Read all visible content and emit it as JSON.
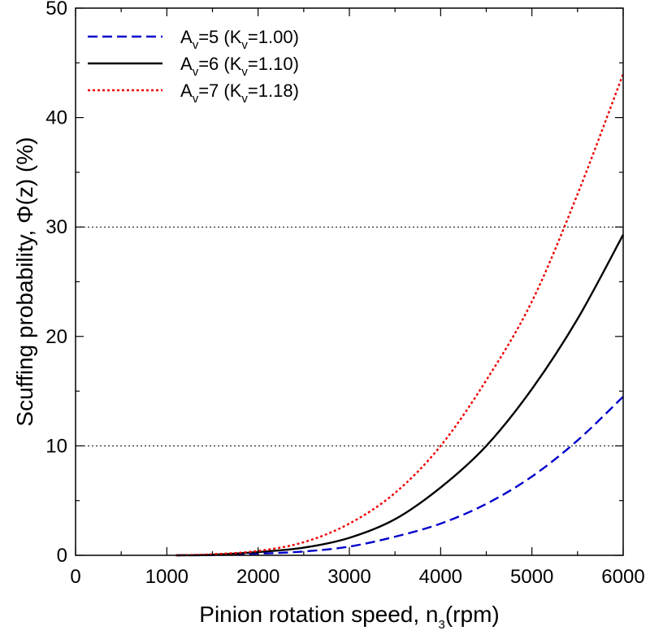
{
  "chart_data": {
    "type": "line",
    "xlabel": "Pinion rotation speed, n",
    "xlabel_sub": "3",
    "xlabel_unit": "(rpm)",
    "ylabel": "Scuffing probability, Φ(z) (%)",
    "xlim": [
      0,
      6000
    ],
    "ylim": [
      0,
      50
    ],
    "x_ticks": [
      0,
      1000,
      2000,
      3000,
      4000,
      5000,
      6000
    ],
    "y_ticks": [
      0,
      10,
      20,
      30,
      40,
      50
    ],
    "reference_lines": [
      10,
      30
    ],
    "legend_position": "top-left",
    "grid": false,
    "series": [
      {
        "name": "Av=5 (Kv=1.00)",
        "A_value": "5",
        "K_value": "1.00",
        "color": "#0000cc",
        "dash": "dashed",
        "x": [
          1100,
          1500,
          2000,
          2500,
          3000,
          3500,
          4000,
          4500,
          5000,
          5500,
          6000
        ],
        "y": [
          0.0,
          0.02,
          0.15,
          0.35,
          0.8,
          1.7,
          2.9,
          4.7,
          7.2,
          10.5,
          14.5
        ]
      },
      {
        "name": "Av=6 (Kv=1.10)",
        "A_value": "6",
        "K_value": "1.10",
        "color": "#000000",
        "dash": "solid",
        "x": [
          1100,
          1500,
          2000,
          2500,
          3000,
          3500,
          4000,
          4500,
          5000,
          5500,
          6000
        ],
        "y": [
          0.0,
          0.05,
          0.3,
          0.7,
          1.6,
          3.3,
          6.2,
          10.0,
          15.2,
          21.6,
          29.3
        ]
      },
      {
        "name": "Av=7 (Kv=1.18)",
        "A_value": "7",
        "K_value": "1.18",
        "color": "#ee0000",
        "dash": "dotted",
        "x": [
          1100,
          1500,
          2000,
          2500,
          3000,
          3500,
          4000,
          4500,
          5000,
          5500,
          6000
        ],
        "y": [
          0.0,
          0.1,
          0.4,
          1.2,
          2.9,
          5.7,
          10.0,
          16.0,
          23.2,
          33.0,
          44.0
        ]
      }
    ]
  }
}
